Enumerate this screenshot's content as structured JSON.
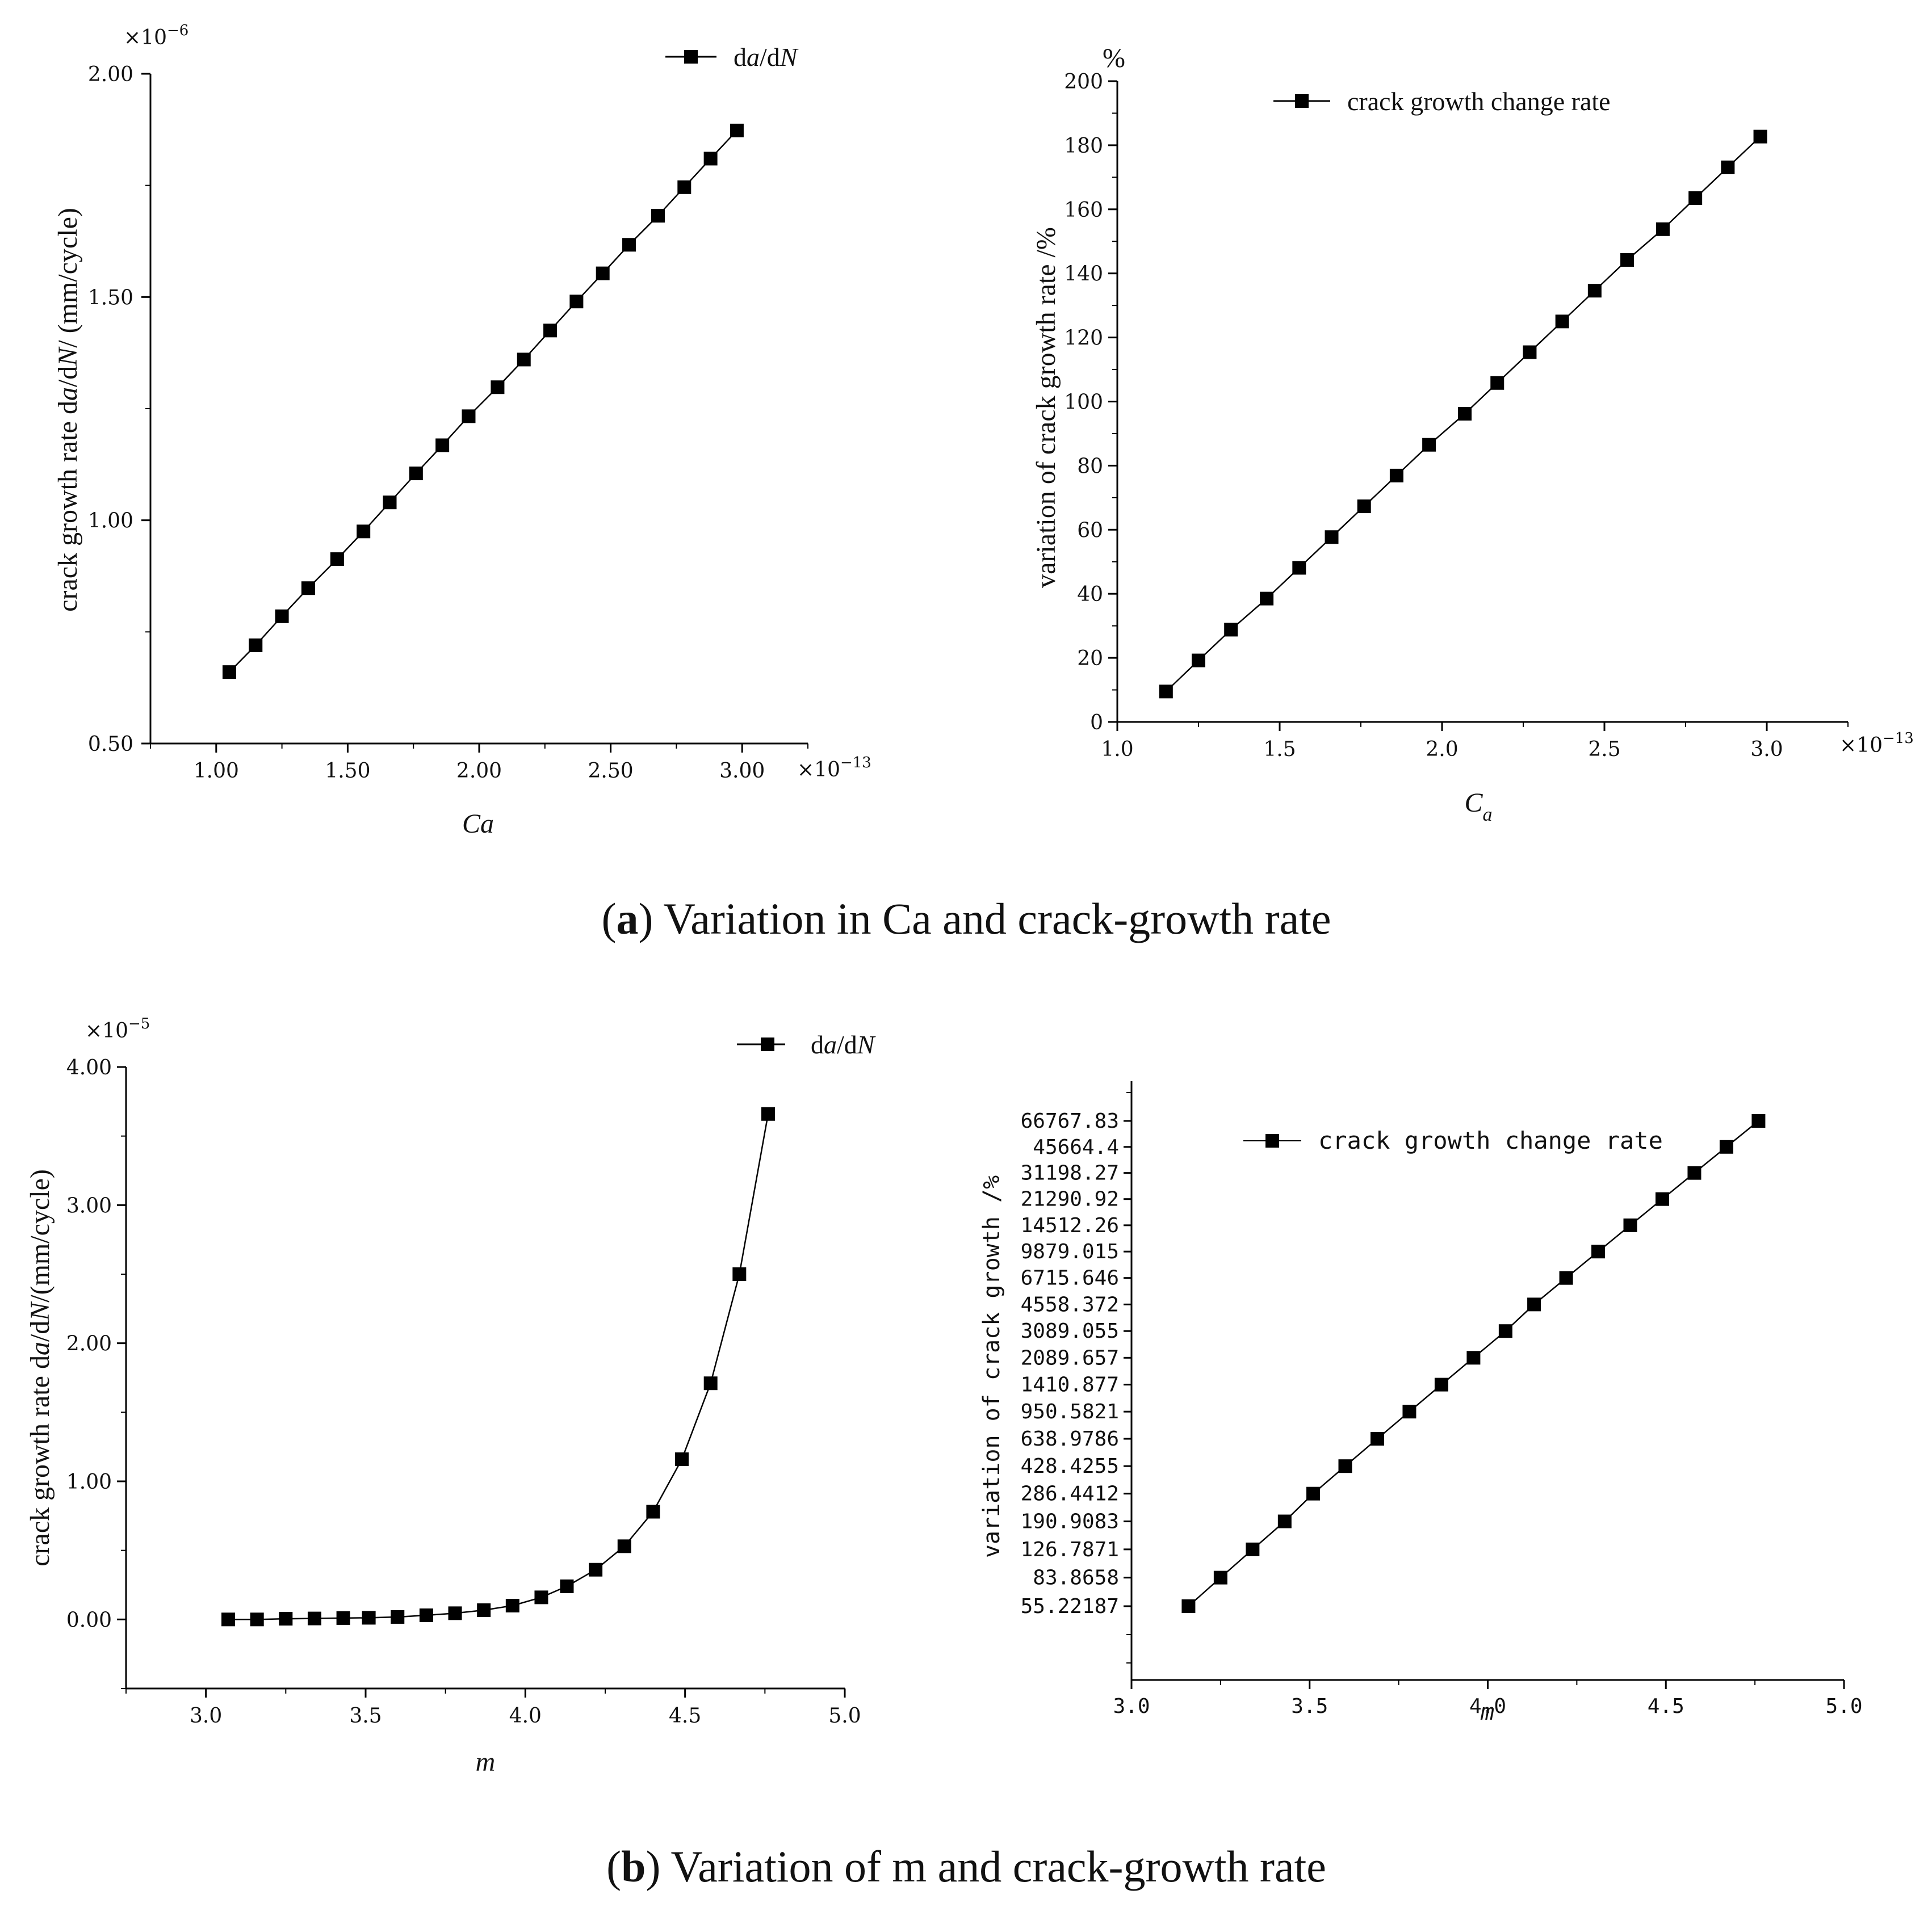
{
  "captions": {
    "a": {
      "open": "(",
      "bold": "a",
      "close": ")",
      "text": " Variation in Ca and crack-growth rate"
    },
    "b": {
      "open": "(",
      "bold": "b",
      "close": ")",
      "text": " Variation of m and crack-growth rate"
    }
  },
  "chart_data": [
    {
      "id": "a-left",
      "type": "line",
      "title": "",
      "xlabel": "Ca",
      "ylabel": {
        "pre": "crack growth rate  d",
        "i1": "a",
        "mid": "/d",
        "i2": "N",
        "post": "/ (mm/cycle)"
      },
      "x_multiplier": "×10",
      "x_exponent": "−13",
      "y_multiplier": "×10",
      "y_exponent": "−6",
      "xlim": [
        0.75,
        3.25
      ],
      "ylim": [
        0.5,
        2.0
      ],
      "xticks": [
        "1.00",
        "1.50",
        "2.00",
        "2.50",
        "3.00"
      ],
      "yticks": [
        "0.50",
        "1.00",
        "1.50",
        "2.00"
      ],
      "legend": {
        "pre": "d",
        "i1": "a",
        "mid": "/d",
        "i2": "N"
      },
      "series": [
        {
          "name": "da/dN",
          "x": [
            1.05,
            1.15,
            1.25,
            1.35,
            1.46,
            1.56,
            1.66,
            1.76,
            1.86,
            1.96,
            2.07,
            2.17,
            2.27,
            2.37,
            2.47,
            2.57,
            2.68,
            2.78,
            2.88,
            2.98
          ],
          "y": [
            0.66,
            0.72,
            0.785,
            0.848,
            0.913,
            0.975,
            1.04,
            1.105,
            1.168,
            1.233,
            1.298,
            1.36,
            1.425,
            1.49,
            1.553,
            1.617,
            1.682,
            1.746,
            1.81,
            1.873
          ]
        }
      ]
    },
    {
      "id": "a-right",
      "type": "line",
      "title": "",
      "xlabel": {
        "main": "C",
        "sub": "a"
      },
      "ylabel": "variation of crack growth rate  /%",
      "y_unit_label": "%",
      "x_multiplier": "×10",
      "x_exponent": "−13",
      "xlim": [
        1.0,
        3.25
      ],
      "ylim": [
        0,
        200
      ],
      "xticks": [
        "1.0",
        "1.5",
        "2.0",
        "2.5",
        "3.0"
      ],
      "yticks": [
        "0",
        "20",
        "40",
        "60",
        "80",
        "100",
        "120",
        "140",
        "160",
        "180",
        "200"
      ],
      "legend": "crack growth  change rate",
      "series": [
        {
          "name": "crack growth change rate",
          "x": [
            1.15,
            1.25,
            1.35,
            1.46,
            1.56,
            1.66,
            1.76,
            1.86,
            1.96,
            2.07,
            2.17,
            2.27,
            2.37,
            2.47,
            2.57,
            2.68,
            2.78,
            2.88,
            2.98
          ],
          "y": [
            9.5,
            19.2,
            28.8,
            38.5,
            48.1,
            57.7,
            67.3,
            76.9,
            86.5,
            96.2,
            105.8,
            115.4,
            125.0,
            134.6,
            144.2,
            153.8,
            163.5,
            173.1,
            182.7
          ]
        }
      ]
    },
    {
      "id": "b-left",
      "type": "line",
      "title": "",
      "xlabel": "m",
      "ylabel": {
        "pre": "crack growth rate  d",
        "i1": "a",
        "mid": "/d",
        "i2": "N",
        "post": "/(mm/cycle)"
      },
      "y_multiplier": "×10",
      "y_exponent": "−5",
      "xlim": [
        2.75,
        5.0
      ],
      "ylim": [
        -0.5,
        4.0
      ],
      "xticks": [
        "3.0",
        "3.5",
        "4.0",
        "4.5",
        "5.0"
      ],
      "yticks": [
        "0.00",
        "1.00",
        "2.00",
        "3.00",
        "4.00"
      ],
      "legend": {
        "pre": "d",
        "i1": "a",
        "mid": "/d",
        "i2": "N"
      },
      "series": [
        {
          "name": "da/dN",
          "x": [
            3.07,
            3.16,
            3.25,
            3.34,
            3.43,
            3.51,
            3.6,
            3.69,
            3.78,
            3.87,
            3.96,
            4.05,
            4.13,
            4.22,
            4.31,
            4.4,
            4.49,
            4.58,
            4.67,
            4.76
          ],
          "y": [
            0.0,
            0.0,
            0.005,
            0.007,
            0.01,
            0.012,
            0.018,
            0.03,
            0.045,
            0.067,
            0.1,
            0.16,
            0.24,
            0.36,
            0.53,
            0.78,
            1.16,
            1.71,
            2.5,
            3.66
          ]
        }
      ]
    },
    {
      "id": "b-right",
      "type": "line",
      "title": "",
      "xlabel": "m",
      "ylabel": "variation of crack growth /%",
      "xlim": [
        3.0,
        5.0
      ],
      "xticks": [
        "3.0",
        "3.5",
        "4.0",
        "4.5",
        "5.0"
      ],
      "yticks": [
        "55.22187",
        "83.8658",
        "126.7871",
        "190.9083",
        "286.4412",
        "428.4255",
        "638.9786",
        "950.5821",
        "1410.877",
        "2089.657",
        "3089.055",
        "4558.372",
        "6715.646",
        "9879.015",
        "14512.26",
        "21290.92",
        "31198.27",
        "45664.4",
        "66767.83"
      ],
      "legend": "crack growth change rate",
      "series": [
        {
          "name": "crack growth change rate",
          "x": [
            3.16,
            3.25,
            3.34,
            3.43,
            3.51,
            3.6,
            3.69,
            3.78,
            3.87,
            3.96,
            4.05,
            4.13,
            4.22,
            4.31,
            4.4,
            4.49,
            4.58,
            4.67,
            4.76
          ],
          "y": [
            55.22187,
            83.8658,
            126.7871,
            190.9083,
            286.4412,
            428.4255,
            638.9786,
            950.5821,
            1410.877,
            2089.657,
            3089.055,
            4558.372,
            6715.646,
            9879.015,
            14512.26,
            21290.92,
            31198.27,
            45664.4,
            66767.83
          ]
        }
      ]
    }
  ]
}
